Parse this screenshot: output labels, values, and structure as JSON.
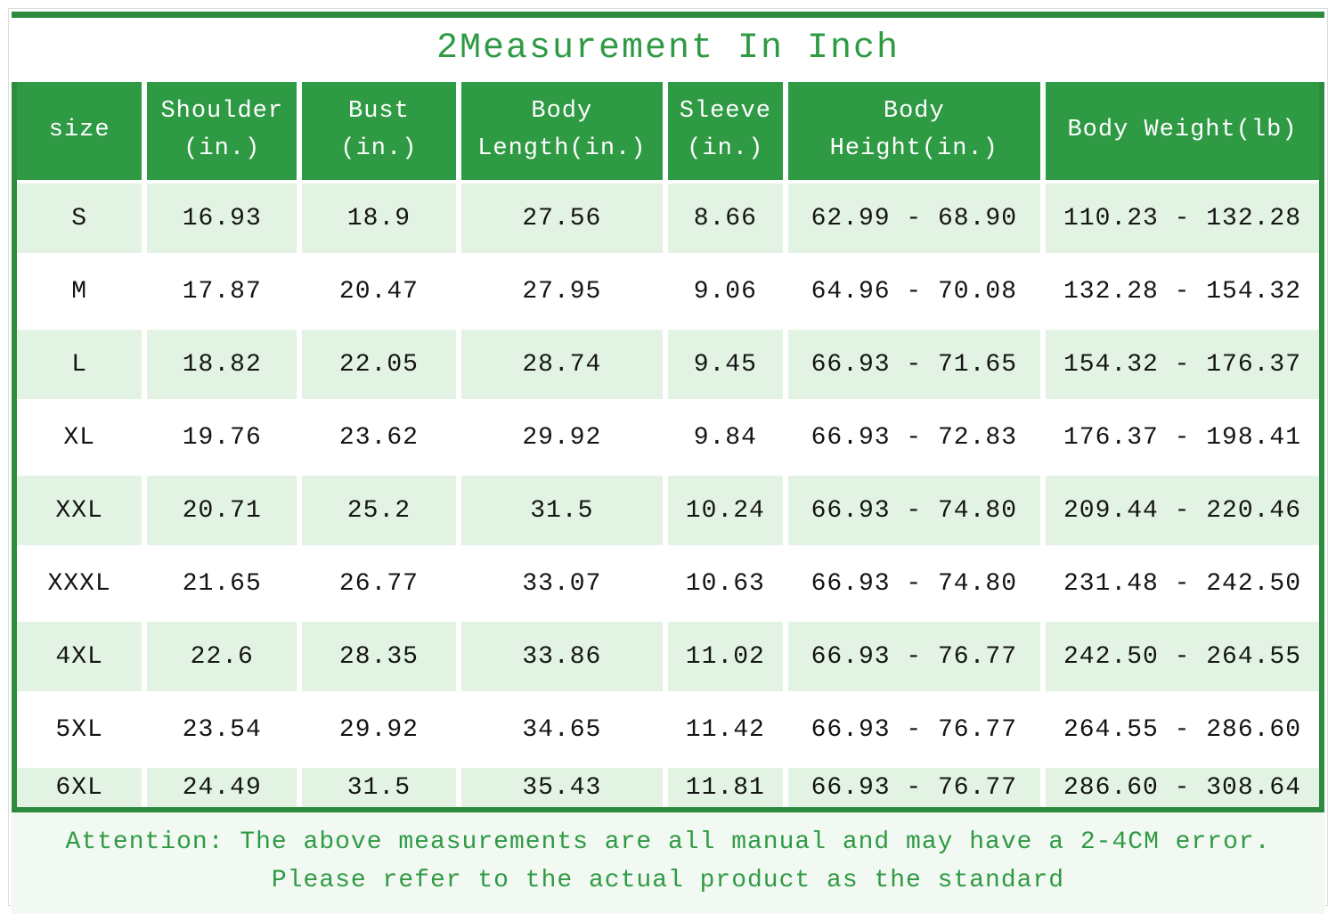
{
  "title": "2Measurement In Inch",
  "table": {
    "columns": [
      {
        "key": "size",
        "label": "size"
      },
      {
        "key": "shoulder",
        "label": "Shoulder\n(in.)"
      },
      {
        "key": "bust",
        "label": "Bust\n(in.)"
      },
      {
        "key": "body-length",
        "label": "Body\nLength(in.)"
      },
      {
        "key": "sleeve",
        "label": "Sleeve\n(in.)"
      },
      {
        "key": "body-height",
        "label": "Body\nHeight(in.)"
      },
      {
        "key": "body-weight",
        "label": "Body Weight(lb)"
      }
    ],
    "rows": [
      [
        "S",
        "16.93",
        "18.9",
        "27.56",
        "8.66",
        "62.99 - 68.90",
        "110.23 - 132.28"
      ],
      [
        "M",
        "17.87",
        "20.47",
        "27.95",
        "9.06",
        "64.96 - 70.08",
        "132.28 - 154.32"
      ],
      [
        "L",
        "18.82",
        "22.05",
        "28.74",
        "9.45",
        "66.93 - 71.65",
        "154.32 - 176.37"
      ],
      [
        "XL",
        "19.76",
        "23.62",
        "29.92",
        "9.84",
        "66.93 - 72.83",
        "176.37 - 198.41"
      ],
      [
        "XXL",
        "20.71",
        "25.2",
        "31.5",
        "10.24",
        "66.93 - 74.80",
        "209.44 - 220.46"
      ],
      [
        "XXXL",
        "21.65",
        "26.77",
        "33.07",
        "10.63",
        "66.93 - 74.80",
        "231.48 - 242.50"
      ],
      [
        "4XL",
        "22.6",
        "28.35",
        "33.86",
        "11.02",
        "66.93 - 76.77",
        "242.50 - 264.55"
      ],
      [
        "5XL",
        "23.54",
        "29.92",
        "34.65",
        "11.42",
        "66.93 - 76.77",
        "264.55 - 286.60"
      ],
      [
        "6XL",
        "24.49",
        "31.5",
        "35.43",
        "11.81",
        "66.93 - 76.77",
        "286.60 - 308.64"
      ]
    ]
  },
  "footer": {
    "line1": "Attention: The above measurements are all manual and may have a 2-4CM error.",
    "line2": "Please refer to the actual product as the standard"
  },
  "colors": {
    "header_green": "#2f9a44",
    "frame_green": "#2e8b3e",
    "row_light_green": "#e2f3e3",
    "footer_bg": "#f2f9f2",
    "text_green": "#2f9a44"
  },
  "chart_data": {
    "type": "table",
    "title": "2Measurement In Inch",
    "columns": [
      "size",
      "Shoulder (in.)",
      "Bust (in.)",
      "Body Length(in.)",
      "Sleeve (in.)",
      "Body Height(in.)",
      "Body Weight(lb)"
    ],
    "rows": [
      [
        "S",
        16.93,
        18.9,
        27.56,
        8.66,
        "62.99 - 68.90",
        "110.23 - 132.28"
      ],
      [
        "M",
        17.87,
        20.47,
        27.95,
        9.06,
        "64.96 - 70.08",
        "132.28 - 154.32"
      ],
      [
        "L",
        18.82,
        22.05,
        28.74,
        9.45,
        "66.93 - 71.65",
        "154.32 - 176.37"
      ],
      [
        "XL",
        19.76,
        23.62,
        29.92,
        9.84,
        "66.93 - 72.83",
        "176.37 - 198.41"
      ],
      [
        "XXL",
        20.71,
        25.2,
        31.5,
        10.24,
        "66.93 - 74.80",
        "209.44 - 220.46"
      ],
      [
        "XXXL",
        21.65,
        26.77,
        33.07,
        10.63,
        "66.93 - 74.80",
        "231.48 - 242.50"
      ],
      [
        "4XL",
        22.6,
        28.35,
        33.86,
        11.02,
        "66.93 - 76.77",
        "242.50 - 264.55"
      ],
      [
        "5XL",
        23.54,
        29.92,
        34.65,
        11.42,
        "66.93 - 76.77",
        "264.55 - 286.60"
      ],
      [
        "6XL",
        24.49,
        31.5,
        35.43,
        11.81,
        "66.93 - 76.77",
        "286.60 - 308.64"
      ]
    ],
    "notes": [
      "Attention: The above measurements are all manual and may have a 2-4CM error.",
      "Please refer to the actual product as the standard"
    ],
    "legend_position": "none",
    "grid": false
  }
}
